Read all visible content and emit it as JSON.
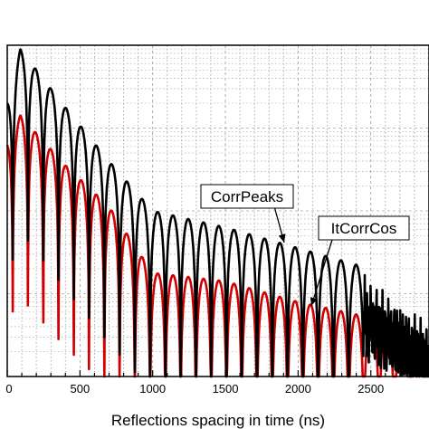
{
  "chart_data": {
    "type": "line",
    "title": "",
    "xlabel": "Reflections spacing in time (ns)",
    "ylabel": "",
    "xlim": [
      0,
      2900
    ],
    "y_scale": "log",
    "ylim_decades": [
      0,
      4
    ],
    "x_ticks": [
      0,
      500,
      1000,
      1500,
      2000,
      2500
    ],
    "x_tick_labels": [
      "0",
      "500",
      "1000",
      "1500",
      "2000",
      "2500"
    ],
    "grid": true,
    "y_tick_labels_visible": false,
    "series": [
      {
        "name": "CorrPeaks",
        "color": "#000000",
        "lobe_period_ns": 105,
        "first_peak_ns": 90,
        "envelope_points": [
          [
            0,
            3.35
          ],
          [
            90,
            3.95
          ],
          [
            400,
            3.25
          ],
          [
            700,
            2.6
          ],
          [
            1000,
            2.0
          ],
          [
            1500,
            1.8
          ],
          [
            2000,
            1.55
          ],
          [
            2400,
            1.35
          ],
          [
            2900,
            0.75
          ]
        ],
        "noisy_tail_from_ns": 2450
      },
      {
        "name": "ItCorrCos",
        "color": "#d00000",
        "lobe_period_ns": 105,
        "first_peak_ns": 90,
        "envelope_points": [
          [
            0,
            2.85
          ],
          [
            90,
            3.15
          ],
          [
            400,
            2.55
          ],
          [
            700,
            2.05
          ],
          [
            1000,
            1.25
          ],
          [
            1500,
            1.15
          ],
          [
            2000,
            0.9
          ],
          [
            2400,
            0.75
          ],
          [
            2900,
            0.4
          ]
        ],
        "noisy_tail_from_ns": 0
      }
    ],
    "annotations": [
      {
        "text": "CorrPeaks",
        "points_to_x": 1880
      },
      {
        "text": "ItCorrCos",
        "points_to_x": 2040
      }
    ]
  }
}
